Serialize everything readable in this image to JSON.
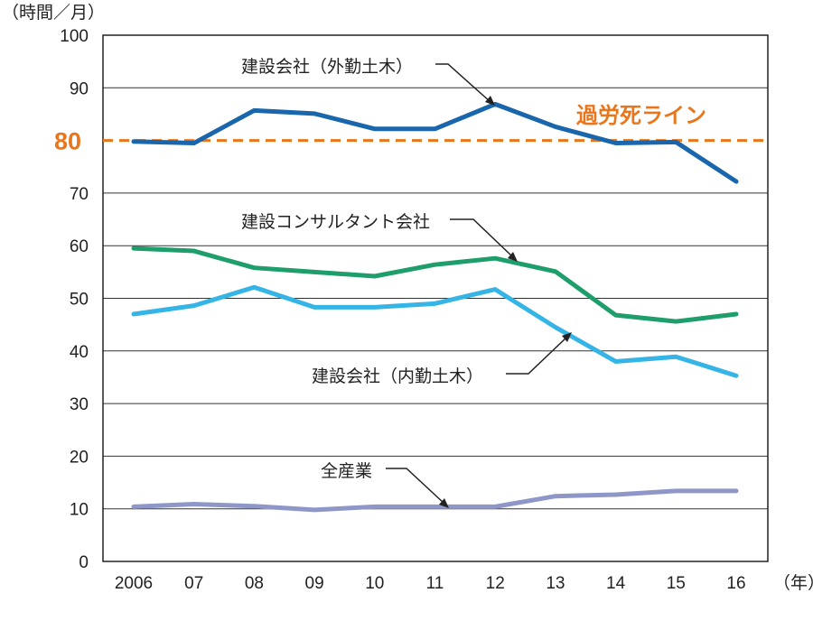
{
  "chart_data": {
    "type": "line",
    "y_unit": "（時間／月）",
    "x_unit": "（年）",
    "x": [
      "2006",
      "07",
      "08",
      "09",
      "10",
      "11",
      "12",
      "13",
      "14",
      "15",
      "16"
    ],
    "ylim": [
      0,
      100
    ],
    "yticks": [
      0,
      10,
      20,
      30,
      40,
      50,
      60,
      70,
      80,
      90,
      100
    ],
    "grid": true,
    "reference_line": {
      "value": 80,
      "value_label": "80",
      "label": "過労死ライン",
      "color": "#e8761c"
    },
    "series": [
      {
        "name": "建設会社（外勤土木）",
        "color": "#1a66ac",
        "values": [
          79.8,
          79.5,
          85.7,
          85.1,
          82.2,
          82.2,
          86.9,
          82.6,
          79.5,
          79.7,
          72.2
        ]
      },
      {
        "name": "建設コンサルタント会社",
        "color": "#1e9e6a",
        "values": [
          59.5,
          59.0,
          55.8,
          55.0,
          54.2,
          56.4,
          57.6,
          55.1,
          46.8,
          45.6,
          47.0
        ]
      },
      {
        "name": "建設会社（内勤土木）",
        "color": "#35b4e6",
        "values": [
          47.0,
          48.6,
          52.1,
          48.3,
          48.3,
          49.0,
          51.7,
          44.5,
          38.0,
          38.9,
          35.3
        ]
      },
      {
        "name": "全産業",
        "color": "#8f97c8",
        "values": [
          10.4,
          10.9,
          10.5,
          9.8,
          10.4,
          10.4,
          10.4,
          12.4,
          12.7,
          13.4,
          13.4
        ]
      }
    ]
  }
}
